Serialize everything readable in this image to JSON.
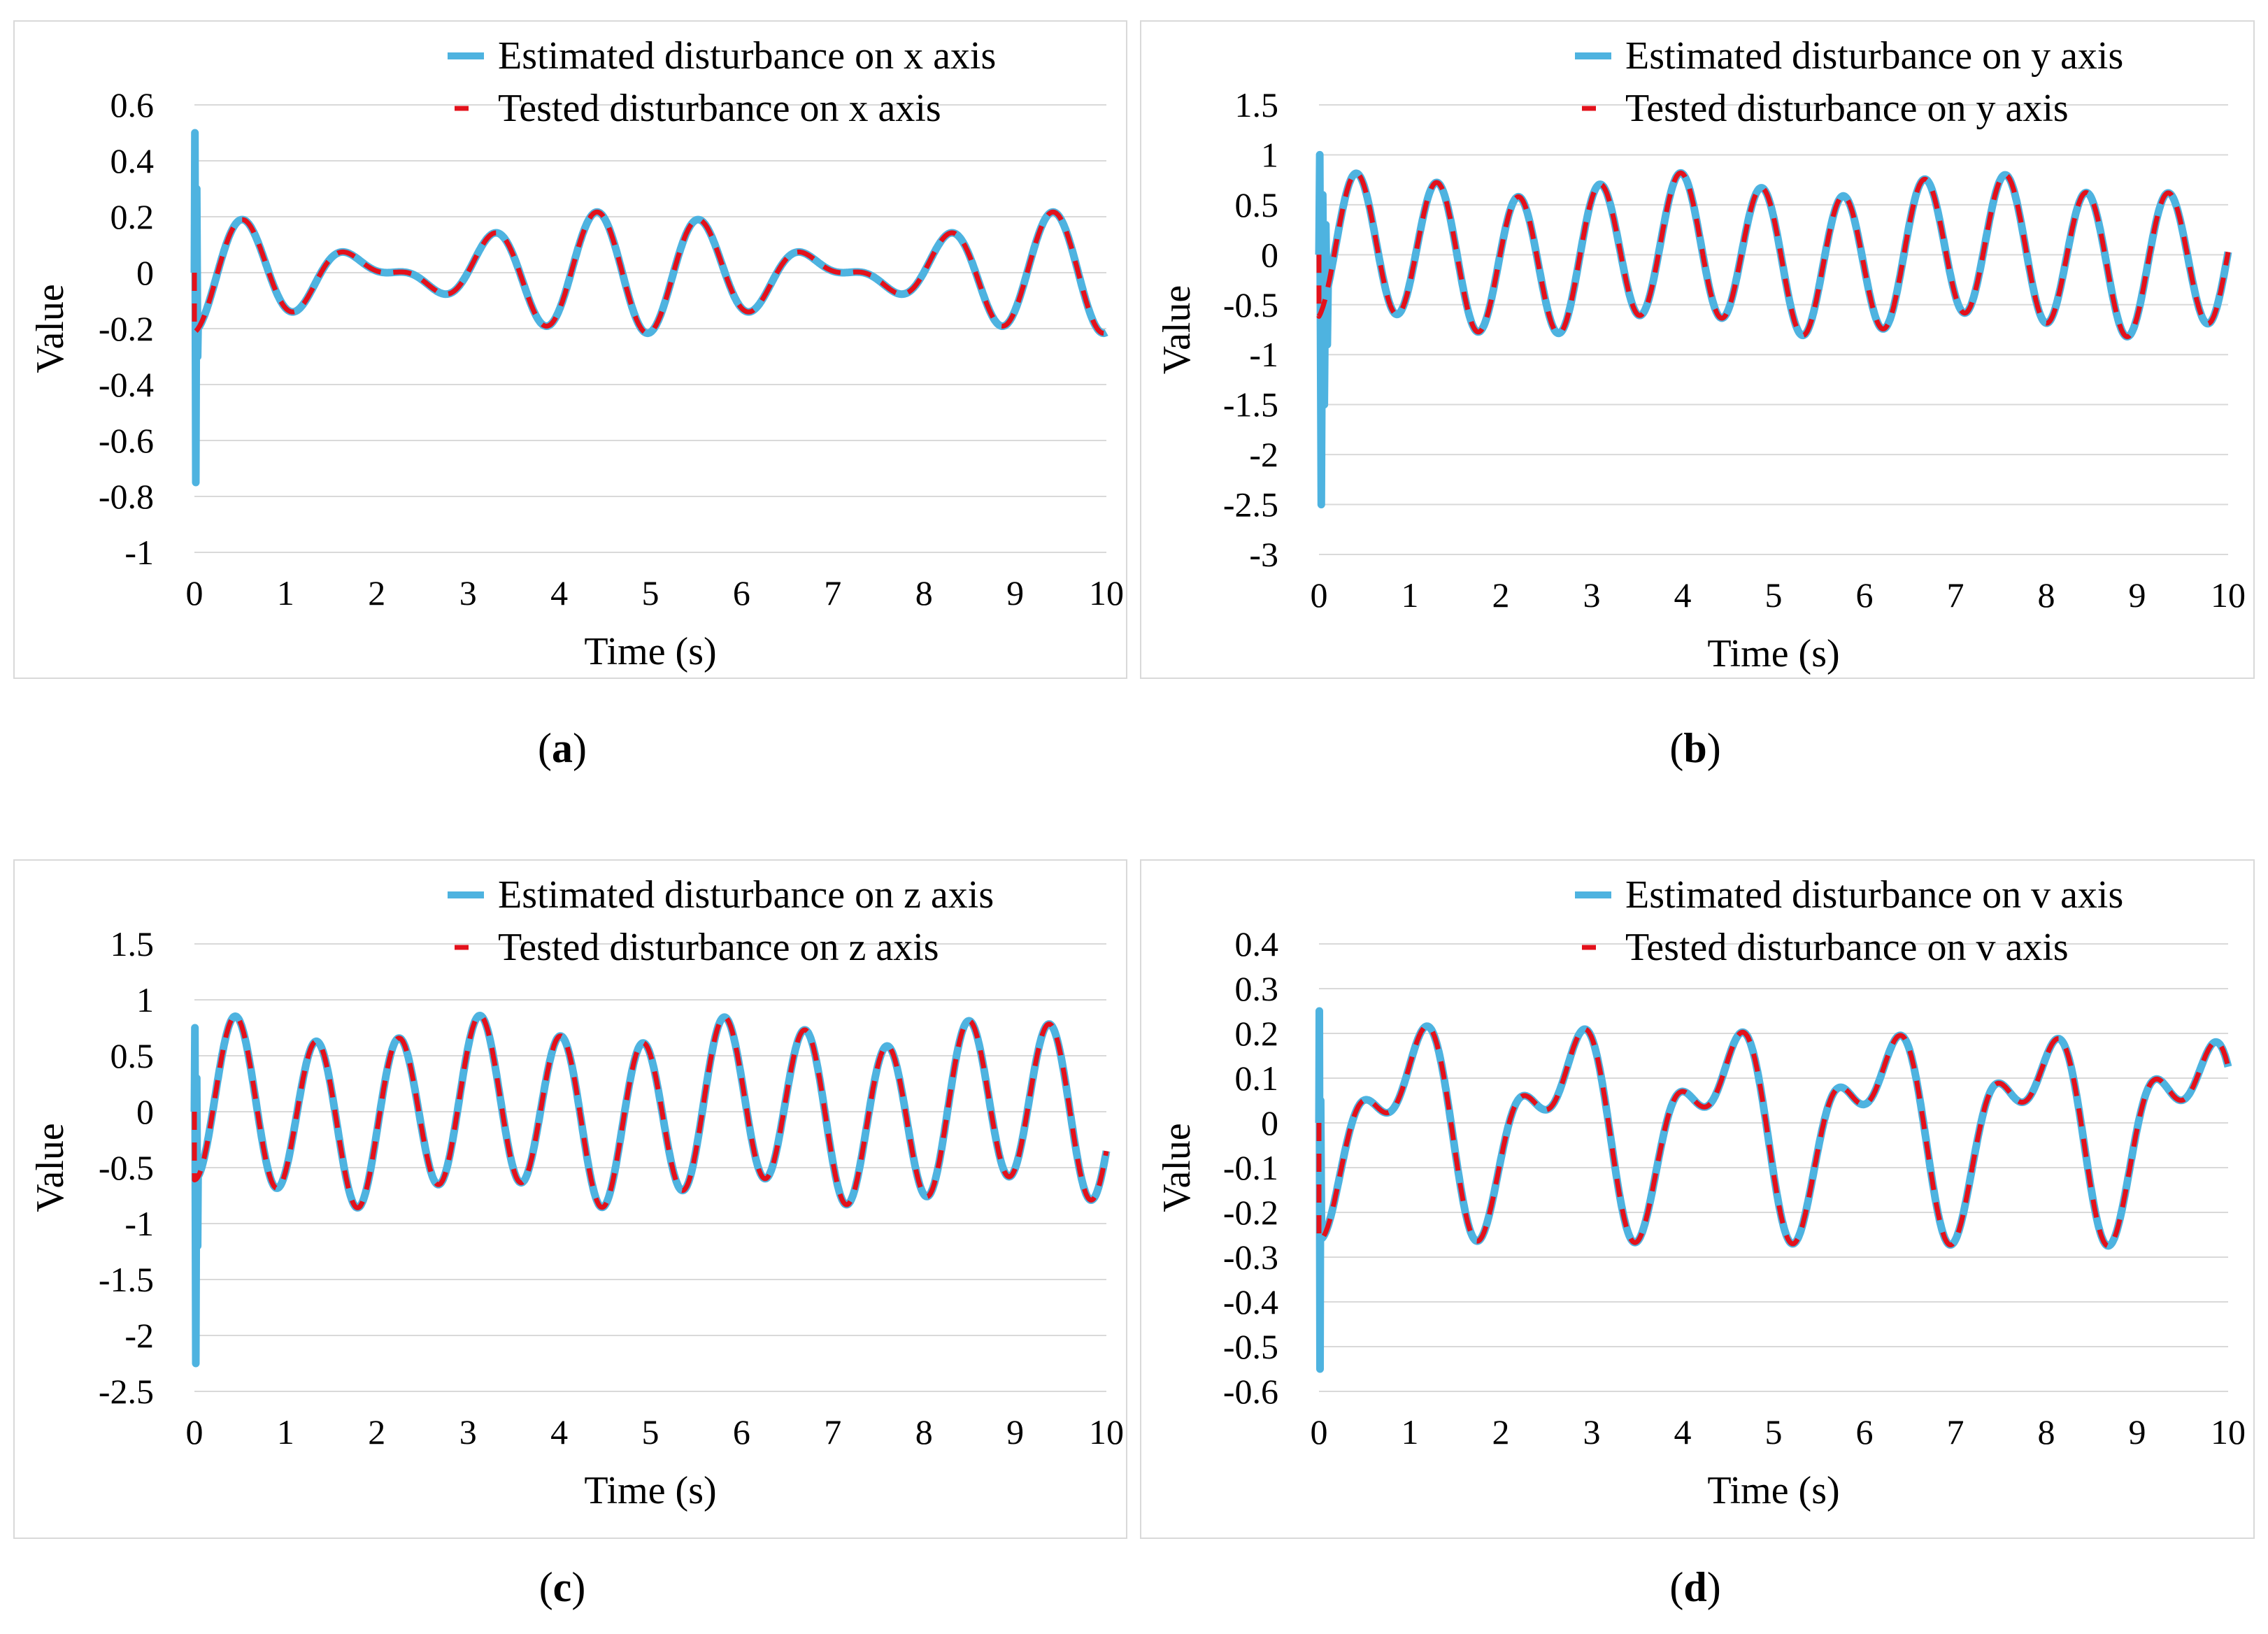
{
  "figure": {
    "colors": {
      "estimated": "#4EB3E0",
      "tested": "#E3111B",
      "grid": "#D9D9D9",
      "frame": "#D9D9D9"
    }
  },
  "chart_data": [
    {
      "id": "a",
      "type": "line",
      "caption": "a",
      "xlabel": "Time (s)",
      "ylabel": "Value",
      "xlim": [
        0,
        10
      ],
      "ylim": [
        -1,
        0.6
      ],
      "xticks": [
        "0",
        "1",
        "2",
        "3",
        "4",
        "5",
        "6",
        "7",
        "8",
        "9",
        "10"
      ],
      "yticks": [
        "0.6",
        "0.4",
        "0.2",
        "0",
        "-0.2",
        "-0.4",
        "-0.6",
        "-0.8",
        "-1"
      ],
      "legend_position": "top-right",
      "series": [
        {
          "name": "Estimated disturbance on x axis",
          "style": "solid",
          "color": "#4EB3E0",
          "transient": {
            "start": 0.5,
            "peaks": [
              0.5,
              -0.75,
              0.3,
              -0.3
            ],
            "duration": 0.04
          },
          "signal": {
            "components": [
              {
                "amp": 0.12,
                "freq": 0.8,
                "phase": -1.6
              },
              {
                "amp": 0.1,
                "freq": 1.0,
                "phase": -1.2
              }
            ]
          }
        },
        {
          "name": "Tested disturbance on x axis",
          "style": "dashed",
          "color": "#E3111B",
          "signal": {
            "components": [
              {
                "amp": 0.12,
                "freq": 0.8,
                "phase": -1.6
              },
              {
                "amp": 0.1,
                "freq": 1.0,
                "phase": -1.2
              }
            ]
          }
        }
      ]
    },
    {
      "id": "b",
      "type": "line",
      "caption": "b",
      "xlabel": "Time (s)",
      "ylabel": "Value",
      "xlim": [
        0,
        10
      ],
      "ylim": [
        -3,
        1.5
      ],
      "xticks": [
        "0",
        "1",
        "2",
        "3",
        "4",
        "5",
        "6",
        "7",
        "8",
        "9",
        "10"
      ],
      "yticks": [
        "1.5",
        "1",
        "0.5",
        "0",
        "-0.5",
        "-1",
        "-1.5",
        "-2",
        "-2.5",
        "-3"
      ],
      "legend_position": "top-right",
      "series": [
        {
          "name": "Estimated disturbance on y axis",
          "style": "solid",
          "color": "#4EB3E0",
          "transient": {
            "start": 1.0,
            "peaks": [
              1.0,
              -2.5,
              0.6,
              -1.5,
              0.3,
              -0.9
            ],
            "duration": 0.1
          },
          "signal": {
            "components": [
              {
                "amp": 0.7,
                "freq": 1.12,
                "phase": -1.3
              },
              {
                "amp": 0.12,
                "freq": 0.3,
                "phase": 0.5
              }
            ]
          }
        },
        {
          "name": "Tested disturbance on y axis",
          "style": "dashed",
          "color": "#E3111B",
          "signal": {
            "components": [
              {
                "amp": 0.7,
                "freq": 1.12,
                "phase": -1.3
              },
              {
                "amp": 0.12,
                "freq": 0.3,
                "phase": 0.5
              }
            ]
          }
        }
      ]
    },
    {
      "id": "c",
      "type": "line",
      "caption": "c",
      "xlabel": "Time (s)",
      "ylabel": "Value",
      "xlim": [
        0,
        10
      ],
      "ylim": [
        -2.5,
        1.5
      ],
      "xticks": [
        "0",
        "1",
        "2",
        "3",
        "4",
        "5",
        "6",
        "7",
        "8",
        "9",
        "10"
      ],
      "yticks": [
        "1.5",
        "1",
        "0.5",
        "0",
        "-0.5",
        "-1",
        "-1.5",
        "-2",
        "-2.5"
      ],
      "legend_position": "top-right",
      "series": [
        {
          "name": "Estimated disturbance on z axis",
          "style": "solid",
          "color": "#4EB3E0",
          "transient": {
            "start": 0.75,
            "peaks": [
              0.75,
              -2.25,
              0.3,
              -1.2
            ],
            "duration": 0.04
          },
          "signal": {
            "components": [
              {
                "amp": 0.72,
                "freq": 1.12,
                "phase": -1.6
              },
              {
                "amp": 0.14,
                "freq": 0.35,
                "phase": 0.9
              }
            ]
          }
        },
        {
          "name": "Tested disturbance on z axis",
          "style": "dashed",
          "color": "#E3111B",
          "signal": {
            "components": [
              {
                "amp": 0.72,
                "freq": 1.12,
                "phase": -1.6
              },
              {
                "amp": 0.14,
                "freq": 0.35,
                "phase": 0.9
              }
            ]
          }
        }
      ]
    },
    {
      "id": "d",
      "type": "line",
      "caption": "d",
      "xlabel": "Time (s)",
      "ylabel": "Value",
      "xlim": [
        0,
        10
      ],
      "ylim": [
        -0.6,
        0.4
      ],
      "xticks": [
        "0",
        "1",
        "2",
        "3",
        "4",
        "5",
        "6",
        "7",
        "8",
        "9",
        "10"
      ],
      "yticks": [
        "0.4",
        "0.3",
        "0.2",
        "0.1",
        "0",
        "-0.1",
        "-0.2",
        "-0.3",
        "-0.4",
        "-0.5",
        "-0.6"
      ],
      "legend_position": "top-right",
      "series": [
        {
          "name": "Estimated disturbance on v axis",
          "style": "solid",
          "color": "#4EB3E0",
          "transient": {
            "start": 0.25,
            "peaks": [
              0.25,
              -0.55,
              0.05,
              -0.2
            ],
            "duration": 0.03
          },
          "signal": {
            "components": [
              {
                "amp": 0.17,
                "freq": 0.58,
                "phase": -2.0
              },
              {
                "amp": 0.11,
                "freq": 1.15,
                "phase": -1.3
              }
            ]
          }
        },
        {
          "name": "Tested disturbance on v axis",
          "style": "dashed",
          "color": "#E3111B",
          "signal": {
            "components": [
              {
                "amp": 0.17,
                "freq": 0.58,
                "phase": -2.0
              },
              {
                "amp": 0.11,
                "freq": 1.15,
                "phase": -1.3
              }
            ]
          }
        }
      ]
    }
  ]
}
